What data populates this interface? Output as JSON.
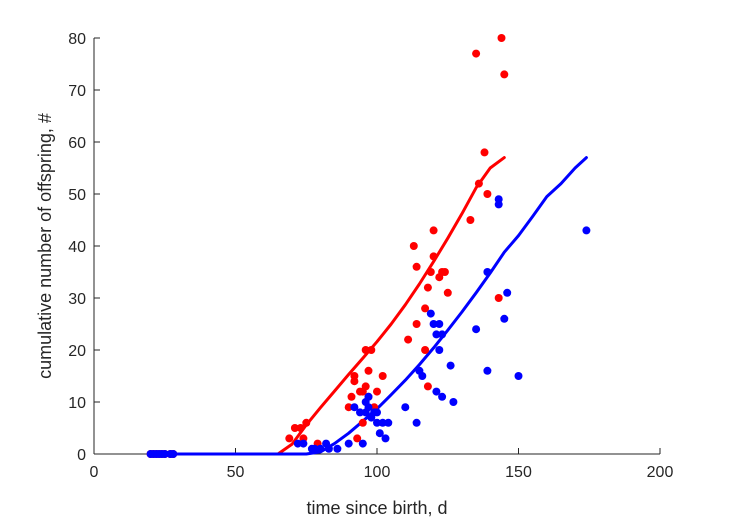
{
  "chart_data": {
    "type": "scatter",
    "xlabel": "time since birth, d",
    "ylabel": "cumulative number of offspring, #",
    "xlim": [
      0,
      200
    ],
    "ylim": [
      0,
      80
    ],
    "xticks": [
      0,
      50,
      100,
      150,
      200
    ],
    "yticks": [
      0,
      10,
      20,
      30,
      40,
      50,
      60,
      70,
      80
    ],
    "grid": false,
    "series": [
      {
        "color": "#ff0000",
        "points": [
          [
            20,
            0
          ],
          [
            21,
            0
          ],
          [
            22,
            0
          ],
          [
            23,
            0
          ],
          [
            24,
            0
          ],
          [
            25,
            0
          ],
          [
            27,
            0
          ],
          [
            28,
            0
          ],
          [
            69,
            3
          ],
          [
            71,
            5
          ],
          [
            73,
            5
          ],
          [
            74,
            3
          ],
          [
            75,
            6
          ],
          [
            79,
            2
          ],
          [
            90,
            9
          ],
          [
            91,
            11
          ],
          [
            92,
            14
          ],
          [
            92,
            15
          ],
          [
            93,
            3
          ],
          [
            94,
            12
          ],
          [
            95,
            6
          ],
          [
            95,
            12
          ],
          [
            96,
            13
          ],
          [
            96,
            20
          ],
          [
            97,
            11
          ],
          [
            97,
            16
          ],
          [
            98,
            20
          ],
          [
            99,
            9
          ],
          [
            100,
            12
          ],
          [
            102,
            15
          ],
          [
            111,
            22
          ],
          [
            113,
            40
          ],
          [
            114,
            25
          ],
          [
            114,
            36
          ],
          [
            117,
            20
          ],
          [
            117,
            28
          ],
          [
            118,
            32
          ],
          [
            118,
            13
          ],
          [
            119,
            35
          ],
          [
            120,
            43
          ],
          [
            120,
            38
          ],
          [
            122,
            34
          ],
          [
            123,
            35
          ],
          [
            124,
            35
          ],
          [
            125,
            31
          ],
          [
            133,
            45
          ],
          [
            135,
            77
          ],
          [
            136,
            52
          ],
          [
            138,
            58
          ],
          [
            139,
            50
          ],
          [
            143,
            30
          ],
          [
            144,
            80
          ],
          [
            145,
            73
          ]
        ],
        "fit": [
          [
            20,
            0
          ],
          [
            60,
            0
          ],
          [
            65,
            0
          ],
          [
            70,
            1.9
          ],
          [
            75,
            5.6
          ],
          [
            80,
            8.9
          ],
          [
            85,
            12.1
          ],
          [
            90,
            15.3
          ],
          [
            95,
            18.4
          ],
          [
            100,
            21.6
          ],
          [
            105,
            25.0
          ],
          [
            110,
            28.7
          ],
          [
            115,
            32.7
          ],
          [
            120,
            37.0
          ],
          [
            125,
            41.5
          ],
          [
            130,
            46.2
          ],
          [
            135,
            51.2
          ],
          [
            140,
            55.0
          ],
          [
            145,
            57.0
          ]
        ]
      },
      {
        "color": "#0000ff",
        "points": [
          [
            20,
            0
          ],
          [
            21,
            0
          ],
          [
            22,
            0
          ],
          [
            23,
            0
          ],
          [
            24,
            0
          ],
          [
            25,
            0
          ],
          [
            27,
            0
          ],
          [
            28,
            0
          ],
          [
            72,
            2
          ],
          [
            74,
            2
          ],
          [
            77,
            1
          ],
          [
            78,
            1
          ],
          [
            80,
            1
          ],
          [
            82,
            2
          ],
          [
            83,
            1
          ],
          [
            86,
            1
          ],
          [
            90,
            2
          ],
          [
            92,
            9
          ],
          [
            94,
            8
          ],
          [
            95,
            2
          ],
          [
            96,
            10
          ],
          [
            96,
            8
          ],
          [
            97,
            9
          ],
          [
            97,
            11
          ],
          [
            98,
            7
          ],
          [
            99,
            8
          ],
          [
            100,
            6
          ],
          [
            100,
            8
          ],
          [
            101,
            4
          ],
          [
            102,
            6
          ],
          [
            103,
            3
          ],
          [
            104,
            6
          ],
          [
            110,
            9
          ],
          [
            114,
            6
          ],
          [
            115,
            16
          ],
          [
            116,
            15
          ],
          [
            119,
            27
          ],
          [
            120,
            25
          ],
          [
            121,
            12
          ],
          [
            121,
            23
          ],
          [
            122,
            25
          ],
          [
            122,
            20
          ],
          [
            123,
            23
          ],
          [
            123,
            11
          ],
          [
            126,
            17
          ],
          [
            127,
            10
          ],
          [
            135,
            24
          ],
          [
            139,
            16
          ],
          [
            139,
            35
          ],
          [
            143,
            48
          ],
          [
            143,
            49
          ],
          [
            145,
            26
          ],
          [
            146,
            31
          ],
          [
            150,
            15
          ],
          [
            174,
            43
          ]
        ],
        "fit": [
          [
            20,
            0
          ],
          [
            75,
            0
          ],
          [
            80,
            0.4
          ],
          [
            85,
            2.0
          ],
          [
            90,
            4.0
          ],
          [
            95,
            6.3
          ],
          [
            100,
            8.7
          ],
          [
            105,
            11.4
          ],
          [
            110,
            14.2
          ],
          [
            115,
            17.2
          ],
          [
            120,
            20.4
          ],
          [
            125,
            23.8
          ],
          [
            130,
            27.3
          ],
          [
            135,
            31.0
          ],
          [
            140,
            34.8
          ],
          [
            145,
            38.8
          ],
          [
            150,
            42.0
          ],
          [
            155,
            45.7
          ],
          [
            160,
            49.5
          ],
          [
            165,
            52.0
          ],
          [
            170,
            55.0
          ],
          [
            174,
            57.0
          ]
        ]
      }
    ]
  }
}
